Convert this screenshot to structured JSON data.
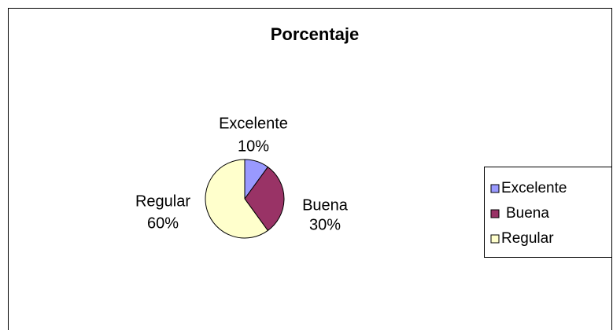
{
  "chart_data": {
    "type": "pie",
    "title": "Porcentaje",
    "categories": [
      "Excelente",
      "Buena",
      "Regular"
    ],
    "values": [
      10,
      30,
      60
    ],
    "value_labels": [
      "10%",
      "30%",
      "60%"
    ],
    "colors": [
      "#9999ff",
      "#993366",
      "#ffffcc"
    ],
    "legend": "right"
  }
}
